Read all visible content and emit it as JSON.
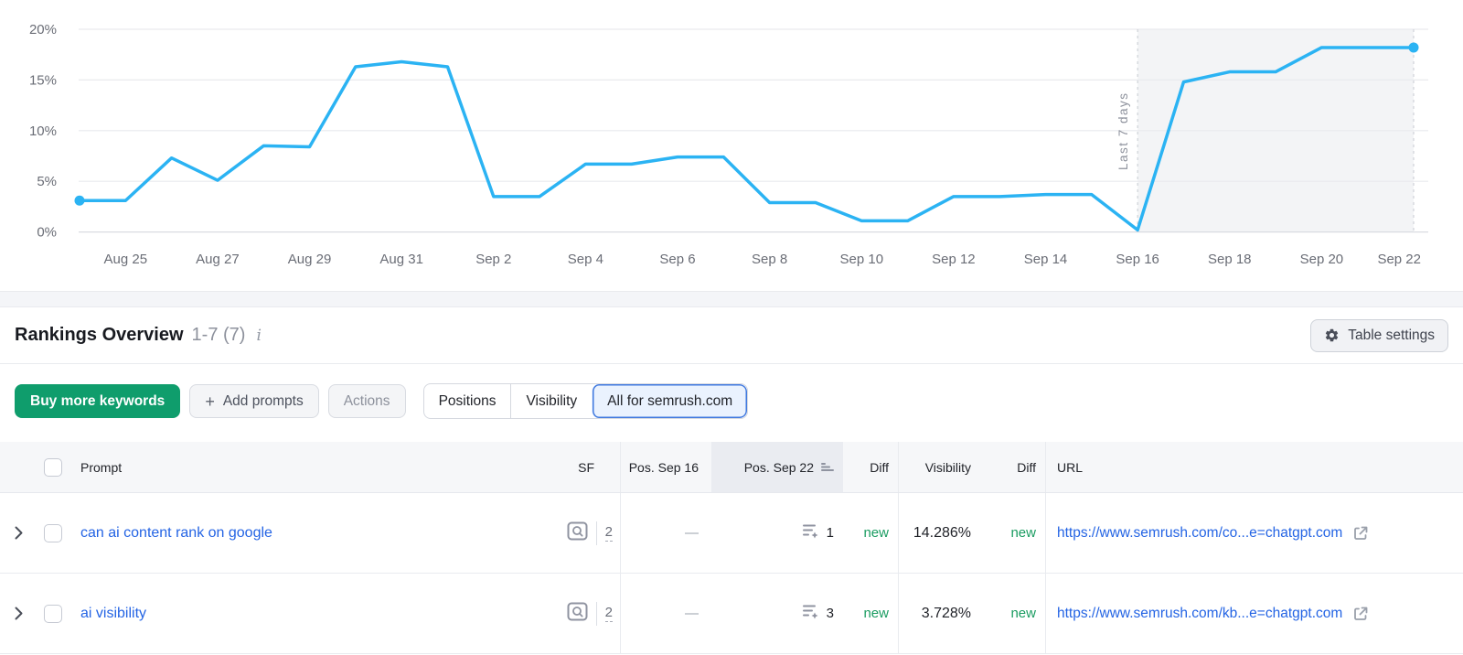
{
  "chart_data": {
    "type": "line",
    "x": [
      "Aug 24",
      "Aug 25",
      "Aug 26",
      "Aug 27",
      "Aug 28",
      "Aug 29",
      "Aug 30",
      "Aug 31",
      "Sep 1",
      "Sep 2",
      "Sep 3",
      "Sep 4",
      "Sep 5",
      "Sep 6",
      "Sep 7",
      "Sep 8",
      "Sep 9",
      "Sep 10",
      "Sep 11",
      "Sep 12",
      "Sep 13",
      "Sep 14",
      "Sep 15",
      "Sep 16",
      "Sep 17",
      "Sep 18",
      "Sep 19",
      "Sep 20",
      "Sep 21",
      "Sep 22"
    ],
    "series": [
      {
        "name": "visibility",
        "color": "#2bb3f3",
        "values": [
          3.1,
          3.1,
          7.3,
          5.1,
          8.5,
          8.4,
          16.3,
          16.8,
          16.3,
          3.5,
          3.5,
          6.7,
          6.7,
          7.4,
          7.4,
          2.9,
          2.9,
          1.1,
          1.1,
          3.5,
          3.5,
          3.7,
          3.7,
          0.2,
          14.8,
          15.8,
          15.8,
          18.2,
          18.2,
          18.2
        ]
      }
    ],
    "ylim": [
      0,
      20
    ],
    "ytick_values": [
      0,
      5,
      10,
      15,
      20
    ],
    "ytick_labels": [
      "0%",
      "5%",
      "10%",
      "15%",
      "20%"
    ],
    "xtick_labels": [
      "Aug 25",
      "Aug 27",
      "Aug 29",
      "Aug 31",
      "Sep 2",
      "Sep 4",
      "Sep 6",
      "Sep 8",
      "Sep 10",
      "Sep 12",
      "Sep 14",
      "Sep 16",
      "Sep 18",
      "Sep 20",
      "Sep 22"
    ],
    "grid": true,
    "legend_position": "none",
    "highlight_region": {
      "start_index": 23,
      "end_index": 29,
      "label": "Last 7 days"
    }
  },
  "rankings": {
    "title": "Rankings Overview",
    "range": "1-7 (7)",
    "info_icon": "i",
    "table_settings_label": "Table settings"
  },
  "toolbar": {
    "buy_button": "Buy more keywords",
    "add_icon": "+",
    "add_prompts": "Add prompts",
    "actions": "Actions",
    "segments": [
      {
        "label": "Positions",
        "selected": false
      },
      {
        "label": "Visibility",
        "selected": false
      },
      {
        "label": "All for semrush.com",
        "selected": true
      }
    ]
  },
  "table": {
    "columns": {
      "prompt": "Prompt",
      "sf": "SF",
      "pos_old": "Pos. Sep 16",
      "pos_new": "Pos. Sep 22",
      "diff1": "Diff",
      "visibility": "Visibility",
      "diff2": "Diff",
      "url": "URL"
    },
    "rows": [
      {
        "prompt": "can ai content rank on google",
        "sf_count": "2",
        "pos_old": "—",
        "pos_new": "1",
        "diff1": "new",
        "visibility": "14.286%",
        "diff2": "new",
        "url": "https://www.semrush.com/co...e=chatgpt.com"
      },
      {
        "prompt": "ai visibility",
        "sf_count": "2",
        "pos_old": "—",
        "pos_new": "3",
        "diff1": "new",
        "visibility": "3.728%",
        "diff2": "new",
        "url": "https://www.semrush.com/kb...e=chatgpt.com"
      }
    ]
  },
  "colors": {
    "line_blue": "#2bb3f3",
    "link_blue": "#2464e4",
    "new_green": "#1a9c61",
    "buy_green": "#0f9d6c",
    "selected_segment_border": "#4079df"
  }
}
